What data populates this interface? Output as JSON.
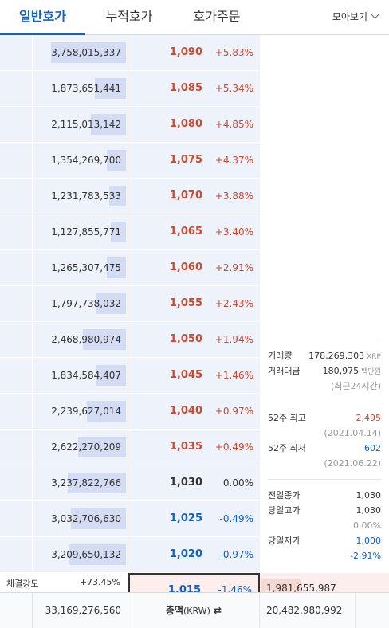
{
  "tabs": [
    {
      "label": "일반호가"
    },
    {
      "label": "누적호가"
    },
    {
      "label": "호가주문"
    }
  ],
  "view_toggle": {
    "label": "모아보기"
  },
  "asks": [
    {
      "qty": "3,758,015,337",
      "price": "1,090",
      "rate": "+5.83%",
      "dir": "up",
      "fill": 1.0
    },
    {
      "qty": "1,873,651,441",
      "price": "1,085",
      "rate": "+5.34%",
      "dir": "up",
      "fill": 0.42
    },
    {
      "qty": "2,115,013,142",
      "price": "1,080",
      "rate": "+4.85%",
      "dir": "up",
      "fill": 0.47
    },
    {
      "qty": "1,354,269,700",
      "price": "1,075",
      "rate": "+4.37%",
      "dir": "up",
      "fill": 0.25
    },
    {
      "qty": "1,231,783,533",
      "price": "1,070",
      "rate": "+3.88%",
      "dir": "up",
      "fill": 0.22
    },
    {
      "qty": "1,127,855,771",
      "price": "1,065",
      "rate": "+3.40%",
      "dir": "up",
      "fill": 0.2
    },
    {
      "qty": "1,265,307,475",
      "price": "1,060",
      "rate": "+2.91%",
      "dir": "up",
      "fill": 0.26
    },
    {
      "qty": "1,797,738,032",
      "price": "1,055",
      "rate": "+2.43%",
      "dir": "up",
      "fill": 0.4
    },
    {
      "qty": "2,468,980,974",
      "price": "1,050",
      "rate": "+1.94%",
      "dir": "up",
      "fill": 0.57
    },
    {
      "qty": "1,834,584,407",
      "price": "1,045",
      "rate": "+1.46%",
      "dir": "up",
      "fill": 0.4
    },
    {
      "qty": "2,239,627,014",
      "price": "1,040",
      "rate": "+0.97%",
      "dir": "up",
      "fill": 0.52
    },
    {
      "qty": "2,622,270,209",
      "price": "1,035",
      "rate": "+0.49%",
      "dir": "up",
      "fill": 0.64
    },
    {
      "qty": "3,237,822,766",
      "price": "1,030",
      "rate": "0.00%",
      "dir": "flat",
      "fill": 0.78
    },
    {
      "qty": "3,032,706,630",
      "price": "1,025",
      "rate": "-0.49%",
      "dir": "down",
      "fill": 0.73
    },
    {
      "qty": "3,209,650,132",
      "price": "1,020",
      "rate": "-0.97%",
      "dir": "down",
      "fill": 0.77
    }
  ],
  "info": {
    "volume_label": "거래량",
    "volume_value": "178,269,303",
    "volume_unit": "XRP",
    "amount_label": "거래대금",
    "amount_value": "180,975",
    "amount_unit": "백만원",
    "period": "(최근24시간)",
    "high52_label": "52주 최고",
    "high52_value": "2,495",
    "high52_date": "(2021.04.14)",
    "low52_label": "52주 최저",
    "low52_value": "602",
    "low52_date": "(2021.06.22)",
    "prev_close_label": "전일종가",
    "prev_close_value": "1,030",
    "day_high_label": "당일고가",
    "day_high_value": "1,030",
    "day_high_rate": "0.00%",
    "day_low_label": "당일저가",
    "day_low_value": "1,000",
    "day_low_rate": "-2.91%"
  },
  "strength": {
    "label": "체결강도",
    "value": "+73.45%"
  },
  "current": {
    "price": "1,015",
    "rate": "-1.46%",
    "bid_qty": "1,981,655,987"
  },
  "footer": {
    "ask_total": "33,169,276,560",
    "label": "총액",
    "label_unit": "(KRW)",
    "swap_icon": "⇄",
    "bid_total": "20,482,980,992"
  },
  "colors": {
    "up": "#c84a31",
    "down": "#1261c4",
    "accent": "#1261c4"
  }
}
